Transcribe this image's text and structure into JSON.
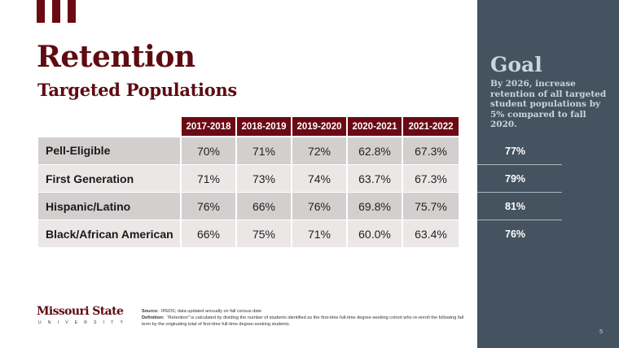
{
  "header": {
    "title": "Retention",
    "subtitle": "Targeted Populations"
  },
  "table": {
    "columns": [
      "2017-2018",
      "2018-2019",
      "2019-2020",
      "2020-2021",
      "2021-2022"
    ],
    "rows": [
      {
        "label": "Pell-Eligible",
        "values": [
          "70%",
          "71%",
          "72%",
          "62.8%",
          "67.3%"
        ]
      },
      {
        "label": "First Generation",
        "values": [
          "71%",
          "73%",
          "74%",
          "63.7%",
          "67.3%"
        ]
      },
      {
        "label": "Hispanic/Latino",
        "values": [
          "76%",
          "66%",
          "76%",
          "69.8%",
          "75.7%"
        ]
      },
      {
        "label": "Black/African American",
        "values": [
          "66%",
          "75%",
          "71%",
          "60.0%",
          "63.4%"
        ]
      }
    ]
  },
  "goal": {
    "title": "Goal",
    "text": "By 2026, increase retention of all targeted student populations by 5% compared to fall 2020.",
    "targets": [
      "77%",
      "79%",
      "81%",
      "76%"
    ]
  },
  "footer": {
    "logo_name": "Missouri State",
    "logo_sub": "UNIVERSITY",
    "source_label": "Source:",
    "source_text": "IPEDS; data updated annually on fall census date",
    "definition_label": "Definition:",
    "definition_text": "\"Retention\" is calculated by dividing the number of students identified as the first-time full-time degree-seeking cohort who re-enroll the following fall term by the originating total of first-time full-time degree-seeking students.",
    "page_number": "5"
  },
  "colors": {
    "maroon": "#6b0a14",
    "panel": "#44535f"
  }
}
